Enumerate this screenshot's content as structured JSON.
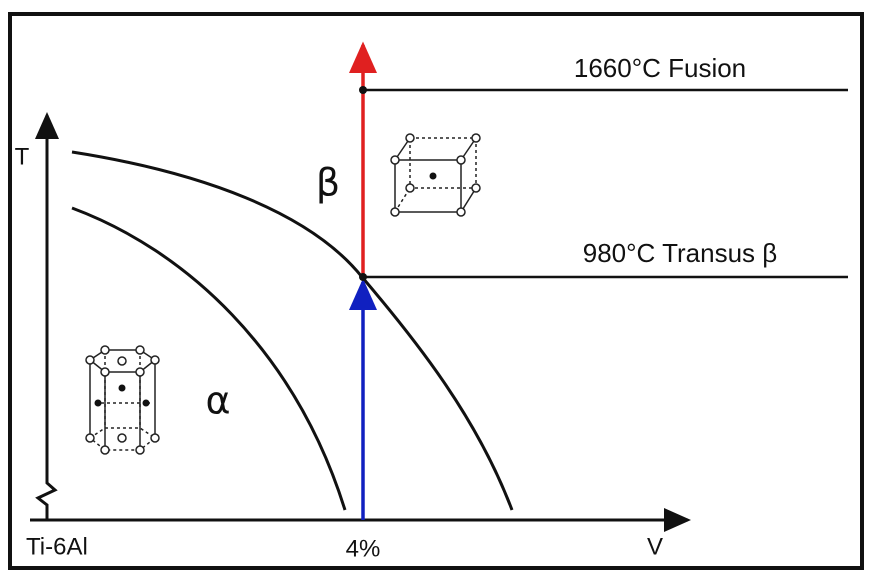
{
  "diagram": {
    "fusion_label": "1660°C Fusion",
    "transus_label": "980°C Transus β",
    "y_axis_label": "T",
    "x_axis_label": "V",
    "origin_label": "Ti-6Al",
    "composition_label": "4%",
    "beta_phase_label": "β",
    "alpha_phase_label": "α"
  }
}
